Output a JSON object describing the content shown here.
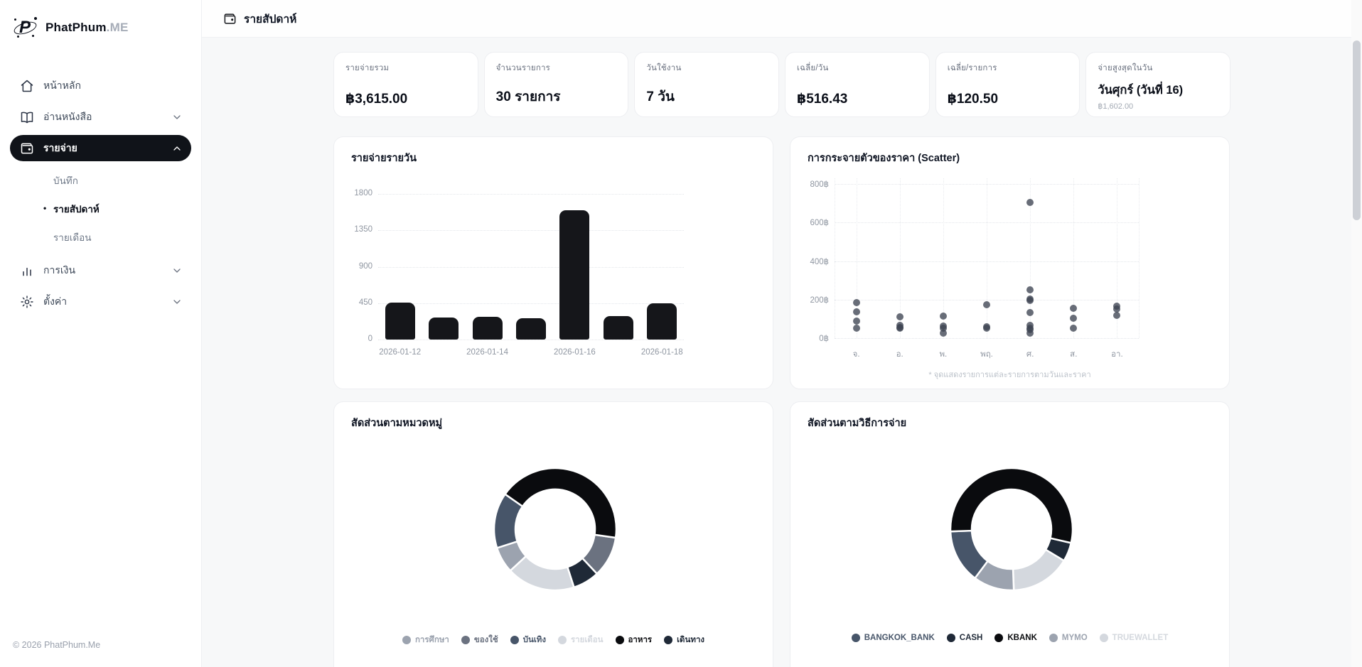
{
  "sidebar": {
    "brand": "PhatPhum",
    "brand_suffix": ".ME",
    "items": [
      {
        "label": "หน้าหลัก",
        "icon": "home-icon",
        "chevron": null,
        "active": false
      },
      {
        "label": "อ่านหนังสือ",
        "icon": "book-icon",
        "chevron": "down",
        "active": false
      },
      {
        "label": "รายจ่าย",
        "icon": "wallet-icon",
        "chevron": "up",
        "active": true
      },
      {
        "label": "การเงิน",
        "icon": "bar-chart-icon",
        "chevron": "down",
        "active": false
      },
      {
        "label": "ตั้งค่า",
        "icon": "gear-icon",
        "chevron": "down",
        "active": false
      }
    ],
    "sub_items": [
      {
        "label": "บันทึก",
        "active": false
      },
      {
        "label": "รายสัปดาห์",
        "active": true
      },
      {
        "label": "รายเดือน",
        "active": false
      }
    ],
    "copyright": "© 2026 PhatPhum.Me"
  },
  "header": {
    "title": "รายสัปดาห์"
  },
  "stats": [
    {
      "label": "รายจ่ายรวม",
      "value": "฿3,615.00"
    },
    {
      "label": "จำนวนรายการ",
      "value": "30 รายการ"
    },
    {
      "label": "วันใช้งาน",
      "value": "7 วัน"
    },
    {
      "label": "เฉลี่ย/วัน",
      "value": "฿516.43"
    },
    {
      "label": "เฉลี่ย/รายการ",
      "value": "฿120.50"
    },
    {
      "label": "จ่ายสูงสุดในวัน",
      "value": "วันศุกร์ (วันที่ 16)",
      "sub": "฿1,602.00"
    }
  ],
  "chart_data": [
    {
      "type": "bar",
      "title": "รายจ่ายรายวัน",
      "categories": [
        "2026-01-12",
        "2026-01-13",
        "2026-01-14",
        "2026-01-15",
        "2026-01-16",
        "2026-01-17",
        "2026-01-18"
      ],
      "values": [
        460,
        272,
        278,
        265,
        1602,
        290,
        448
      ],
      "x_tick_labels": [
        "2026-01-12",
        "2026-01-14",
        "2026-01-16",
        "2026-01-18"
      ],
      "yticks": [
        0,
        450,
        900,
        1350,
        1800
      ],
      "ylim": [
        0,
        1800
      ],
      "bar_color": "#15161a",
      "grid": true
    },
    {
      "type": "scatter",
      "title": "การกระจายตัวของราคา (Scatter)",
      "categories": [
        "จ.",
        "อ.",
        "พ.",
        "พฤ.",
        "ศ.",
        "ส.",
        "อา."
      ],
      "ytick_labels": [
        "0฿",
        "200฿",
        "400฿",
        "600฿",
        "800฿"
      ],
      "yticks": [
        0,
        200,
        400,
        600,
        800
      ],
      "ylim": [
        0,
        800
      ],
      "points": [
        [
          0,
          184
        ],
        [
          0,
          138
        ],
        [
          0,
          89
        ],
        [
          0,
          53
        ],
        [
          1,
          111
        ],
        [
          1,
          68
        ],
        [
          1,
          57
        ],
        [
          1,
          50
        ],
        [
          2,
          113
        ],
        [
          2,
          62
        ],
        [
          2,
          50
        ],
        [
          2,
          27
        ],
        [
          3,
          172
        ],
        [
          3,
          58
        ],
        [
          3,
          52
        ],
        [
          4,
          704
        ],
        [
          4,
          250
        ],
        [
          4,
          204
        ],
        [
          4,
          197
        ],
        [
          4,
          133
        ],
        [
          4,
          65
        ],
        [
          4,
          52
        ],
        [
          4,
          46
        ],
        [
          4,
          25
        ],
        [
          5,
          156
        ],
        [
          5,
          105
        ],
        [
          5,
          53
        ],
        [
          6,
          166
        ],
        [
          6,
          152
        ],
        [
          6,
          117
        ]
      ],
      "note": "* จุดแสดงรายการแต่ละรายการตามวันและราคา",
      "dot_color": "#3d4452",
      "grid": true
    },
    {
      "type": "donut",
      "title": "สัดส่วนตามหมวดหมู่",
      "segments": [
        {
          "label": "การศึกษา",
          "color": "#9ca3af",
          "percent": 6.9
        },
        {
          "label": "ของใช้",
          "color": "#6b7280",
          "percent": 10.8
        },
        {
          "label": "บันเทิง",
          "color": "#475569",
          "percent": 14.7
        },
        {
          "label": "รายเดือน",
          "color": "#d4d8de",
          "percent": 18.1
        },
        {
          "label": "อาหาร",
          "color": "#0a0b0e",
          "percent": 42.5
        },
        {
          "label": "เดินทาง",
          "color": "#1f2937",
          "percent": 7.0
        }
      ],
      "arc_start_deg": 98,
      "arc_order": [
        1,
        5,
        3,
        0,
        2,
        4
      ],
      "legend_position": "bottom"
    },
    {
      "type": "donut",
      "title": "สัดส่วนตามวิธีการจ่าย",
      "segments": [
        {
          "label": "BANGKOK_BANK",
          "color": "#475569",
          "percent": 14.2
        },
        {
          "label": "CASH",
          "color": "#1f2937",
          "percent": 5.0
        },
        {
          "label": "KBANK",
          "color": "#0a0b0e",
          "percent": 54.2
        },
        {
          "label": "MYMO",
          "color": "#9ca3af",
          "percent": 10.8
        },
        {
          "label": "TRUEWALLET",
          "color": "#d4d8de",
          "percent": 15.8
        }
      ],
      "arc_start_deg": 103,
      "arc_order": [
        1,
        4,
        3,
        0,
        2
      ],
      "legend_position": "bottom"
    }
  ],
  "colors": {
    "accent_dark": "#15161a",
    "content_bg": "#f7f8f9",
    "card_border": "#edeef1",
    "muted_text": "#6b7280"
  }
}
